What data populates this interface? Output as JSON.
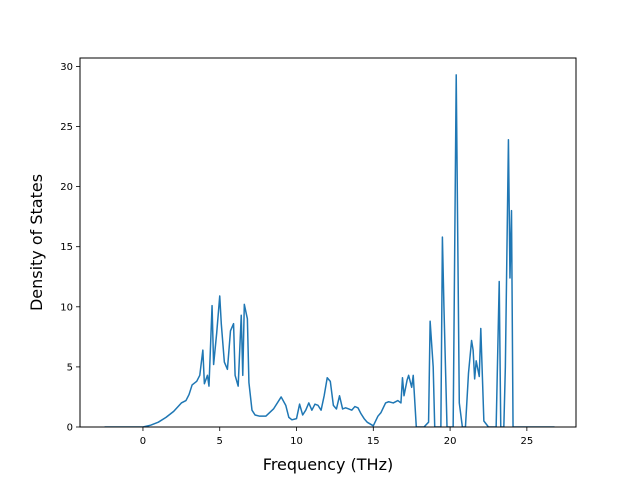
{
  "chart_data": {
    "type": "line",
    "title": "",
    "xlabel": "Frequency (THz)",
    "ylabel": "Density of States",
    "xlim": [
      -4.1,
      28.2
    ],
    "ylim": [
      0,
      30.7
    ],
    "xticks": [
      0,
      5,
      10,
      15,
      20,
      25
    ],
    "yticks": [
      0,
      5,
      10,
      15,
      20,
      25,
      30
    ],
    "grid": false,
    "series": [
      {
        "color": "#1f77b4",
        "x": [
          -2.5,
          -1.0,
          0.0,
          0.5,
          1.0,
          1.5,
          2.0,
          2.5,
          2.8,
          3.0,
          3.2,
          3.5,
          3.7,
          3.9,
          4.0,
          4.2,
          4.3,
          4.5,
          4.6,
          4.8,
          5.0,
          5.1,
          5.3,
          5.5,
          5.7,
          5.9,
          6.0,
          6.2,
          6.4,
          6.5,
          6.6,
          6.8,
          6.9,
          7.1,
          7.3,
          7.6,
          8.0,
          8.5,
          9.0,
          9.3,
          9.5,
          9.7,
          10.0,
          10.2,
          10.4,
          10.6,
          10.8,
          11.0,
          11.2,
          11.4,
          11.6,
          11.8,
          12.0,
          12.2,
          12.4,
          12.6,
          12.8,
          13.0,
          13.2,
          13.4,
          13.6,
          13.8,
          14.0,
          14.2,
          14.4,
          14.6,
          15.0,
          15.3,
          15.5,
          15.8,
          16.0,
          16.3,
          16.6,
          16.8,
          16.9,
          17.0,
          17.2,
          17.3,
          17.5,
          17.6,
          17.8,
          18.0,
          18.3,
          18.6,
          18.7,
          18.9,
          19.0,
          19.2,
          19.4,
          19.5,
          19.6,
          19.8,
          20.0,
          20.2,
          20.4,
          20.6,
          20.8,
          21.0,
          21.2,
          21.4,
          21.5,
          21.6,
          21.7,
          21.9,
          22.0,
          22.2,
          22.5,
          22.8,
          23.0,
          23.2,
          23.3,
          23.5,
          23.6,
          23.8,
          23.9,
          24.0,
          24.1,
          24.2,
          24.3,
          24.5,
          24.7,
          25.0,
          26.0,
          26.8
        ],
        "y": [
          0.0,
          0.0,
          0.0,
          0.15,
          0.4,
          0.8,
          1.3,
          2.0,
          2.2,
          2.7,
          3.5,
          3.8,
          4.3,
          6.4,
          3.6,
          4.3,
          3.4,
          10.1,
          5.2,
          7.8,
          10.9,
          8.6,
          5.4,
          4.8,
          8.0,
          8.6,
          4.3,
          3.4,
          9.3,
          4.3,
          10.2,
          9.0,
          3.7,
          1.4,
          1.0,
          0.9,
          0.9,
          1.5,
          2.5,
          1.8,
          0.8,
          0.6,
          0.7,
          1.9,
          1.0,
          1.4,
          2.0,
          1.4,
          1.9,
          1.8,
          1.4,
          2.6,
          4.1,
          3.8,
          1.8,
          1.5,
          2.6,
          1.5,
          1.6,
          1.5,
          1.4,
          1.7,
          1.6,
          1.1,
          0.7,
          0.4,
          0.1,
          0.9,
          1.2,
          2.0,
          2.1,
          2.0,
          2.2,
          2.0,
          4.1,
          2.6,
          3.9,
          4.3,
          3.3,
          4.3,
          0.0,
          0.0,
          0.0,
          0.4,
          8.8,
          5.0,
          0.0,
          0.0,
          0.0,
          15.8,
          10.0,
          0.0,
          0.0,
          0.0,
          29.3,
          2.0,
          0.0,
          0.0,
          4.5,
          7.2,
          6.4,
          4.0,
          5.5,
          4.2,
          8.2,
          0.5,
          0.0,
          0.0,
          0.0,
          12.1,
          0.0,
          0.0,
          5.0,
          23.9,
          12.4,
          18.0,
          0.0,
          0.0,
          0.0,
          0.0,
          0.0,
          0.0,
          0.0,
          0.0
        ]
      }
    ]
  }
}
